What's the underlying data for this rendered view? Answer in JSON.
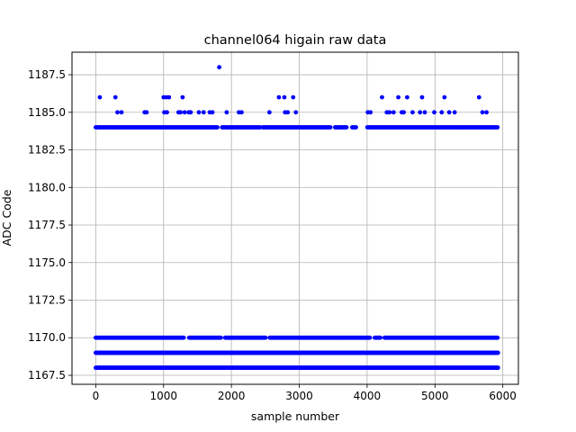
{
  "chart_data": {
    "type": "scatter",
    "title": "channel064 higain raw data",
    "xlabel": "sample number",
    "ylabel": "ADC Code",
    "xlim": [
      -350,
      6230
    ],
    "ylim": [
      1166.9,
      1189.0
    ],
    "xticks": [
      0,
      1000,
      2000,
      3000,
      4000,
      5000,
      6000
    ],
    "xtick_labels": [
      "0",
      "1000",
      "2000",
      "3000",
      "4000",
      "5000",
      "6000"
    ],
    "yticks": [
      1167.5,
      1170.0,
      1172.5,
      1175.0,
      1177.5,
      1180.0,
      1182.5,
      1185.0,
      1187.5
    ],
    "ytick_labels": [
      "1167.5",
      "1170.0",
      "1172.5",
      "1175.0",
      "1177.5",
      "1180.0",
      "1182.5",
      "1185.0",
      "1187.5"
    ],
    "grid": true,
    "marker_color": "#0000ff",
    "x_range": [
      0,
      5930
    ],
    "dense_levels": [
      {
        "y": 1168,
        "x_start": 0,
        "x_end": 5930
      },
      {
        "y": 1169,
        "x_start": 0,
        "x_end": 5930
      },
      {
        "y": 1170,
        "x_start": 0,
        "x_end": 5930
      },
      {
        "y": 1184,
        "x_start": 0,
        "x_end": 5930
      }
    ],
    "sparse_points": [
      {
        "x": 60,
        "y": 1186
      },
      {
        "x": 290,
        "y": 1186
      },
      {
        "x": 320,
        "y": 1185
      },
      {
        "x": 380,
        "y": 1185
      },
      {
        "x": 720,
        "y": 1185
      },
      {
        "x": 750,
        "y": 1185
      },
      {
        "x": 1000,
        "y": 1186
      },
      {
        "x": 1040,
        "y": 1186
      },
      {
        "x": 1080,
        "y": 1186
      },
      {
        "x": 1010,
        "y": 1185
      },
      {
        "x": 1050,
        "y": 1185
      },
      {
        "x": 1220,
        "y": 1185
      },
      {
        "x": 1250,
        "y": 1185
      },
      {
        "x": 1280,
        "y": 1186
      },
      {
        "x": 1310,
        "y": 1185
      },
      {
        "x": 1370,
        "y": 1185
      },
      {
        "x": 1400,
        "y": 1185
      },
      {
        "x": 1520,
        "y": 1185
      },
      {
        "x": 1590,
        "y": 1185
      },
      {
        "x": 1680,
        "y": 1185
      },
      {
        "x": 1720,
        "y": 1185
      },
      {
        "x": 1820,
        "y": 1188
      },
      {
        "x": 1930,
        "y": 1185
      },
      {
        "x": 2110,
        "y": 1185
      },
      {
        "x": 2150,
        "y": 1185
      },
      {
        "x": 2560,
        "y": 1185
      },
      {
        "x": 2700,
        "y": 1186
      },
      {
        "x": 2780,
        "y": 1186
      },
      {
        "x": 2790,
        "y": 1185
      },
      {
        "x": 2830,
        "y": 1185
      },
      {
        "x": 2910,
        "y": 1186
      },
      {
        "x": 2950,
        "y": 1185
      },
      {
        "x": 4010,
        "y": 1185
      },
      {
        "x": 4050,
        "y": 1185
      },
      {
        "x": 4220,
        "y": 1186
      },
      {
        "x": 4290,
        "y": 1185
      },
      {
        "x": 4330,
        "y": 1185
      },
      {
        "x": 4390,
        "y": 1185
      },
      {
        "x": 4460,
        "y": 1186
      },
      {
        "x": 4510,
        "y": 1185
      },
      {
        "x": 4540,
        "y": 1185
      },
      {
        "x": 4590,
        "y": 1186
      },
      {
        "x": 4670,
        "y": 1185
      },
      {
        "x": 4810,
        "y": 1186
      },
      {
        "x": 4780,
        "y": 1185
      },
      {
        "x": 4850,
        "y": 1185
      },
      {
        "x": 4990,
        "y": 1185
      },
      {
        "x": 5100,
        "y": 1185
      },
      {
        "x": 5140,
        "y": 1186
      },
      {
        "x": 5210,
        "y": 1185
      },
      {
        "x": 5290,
        "y": 1185
      },
      {
        "x": 5650,
        "y": 1186
      },
      {
        "x": 5700,
        "y": 1185
      },
      {
        "x": 5760,
        "y": 1185
      }
    ],
    "gaps_1184": [
      [
        1800,
        1860
      ],
      [
        2430,
        2460
      ],
      [
        3460,
        3520
      ],
      [
        3700,
        3770
      ],
      [
        3850,
        3990
      ]
    ],
    "gaps_1170": [
      [
        1300,
        1370
      ],
      [
        1850,
        1900
      ],
      [
        2510,
        2560
      ],
      [
        4050,
        4110
      ],
      [
        4200,
        4250
      ]
    ]
  }
}
